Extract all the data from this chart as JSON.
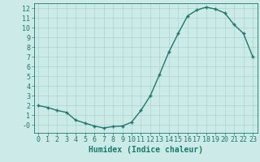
{
  "x": [
    0,
    1,
    2,
    3,
    4,
    5,
    6,
    7,
    8,
    9,
    10,
    11,
    12,
    13,
    14,
    15,
    16,
    17,
    18,
    19,
    20,
    21,
    22,
    23
  ],
  "y": [
    2.0,
    1.8,
    1.5,
    1.3,
    0.5,
    0.2,
    -0.1,
    -0.3,
    -0.15,
    -0.1,
    0.3,
    1.5,
    3.0,
    5.2,
    7.5,
    9.4,
    11.2,
    11.8,
    12.1,
    11.9,
    11.5,
    10.3,
    9.4,
    7.0
  ],
  "line_color": "#1a7a6e",
  "marker_color": "#1a7a6e",
  "bg_color": "#cceae7",
  "grid_color": "#aad4d0",
  "xlabel": "Humidex (Indice chaleur)",
  "ylim": [
    -0.8,
    12.5
  ],
  "xlim": [
    -0.5,
    23.5
  ],
  "yticks": [
    0,
    1,
    2,
    3,
    4,
    5,
    6,
    7,
    8,
    9,
    10,
    11,
    12
  ],
  "xticks": [
    0,
    1,
    2,
    3,
    4,
    5,
    6,
    7,
    8,
    9,
    10,
    11,
    12,
    13,
    14,
    15,
    16,
    17,
    18,
    19,
    20,
    21,
    22,
    23
  ],
  "xlabel_fontsize": 7,
  "tick_fontsize": 6,
  "line_width": 1.0,
  "marker_size": 3.5
}
